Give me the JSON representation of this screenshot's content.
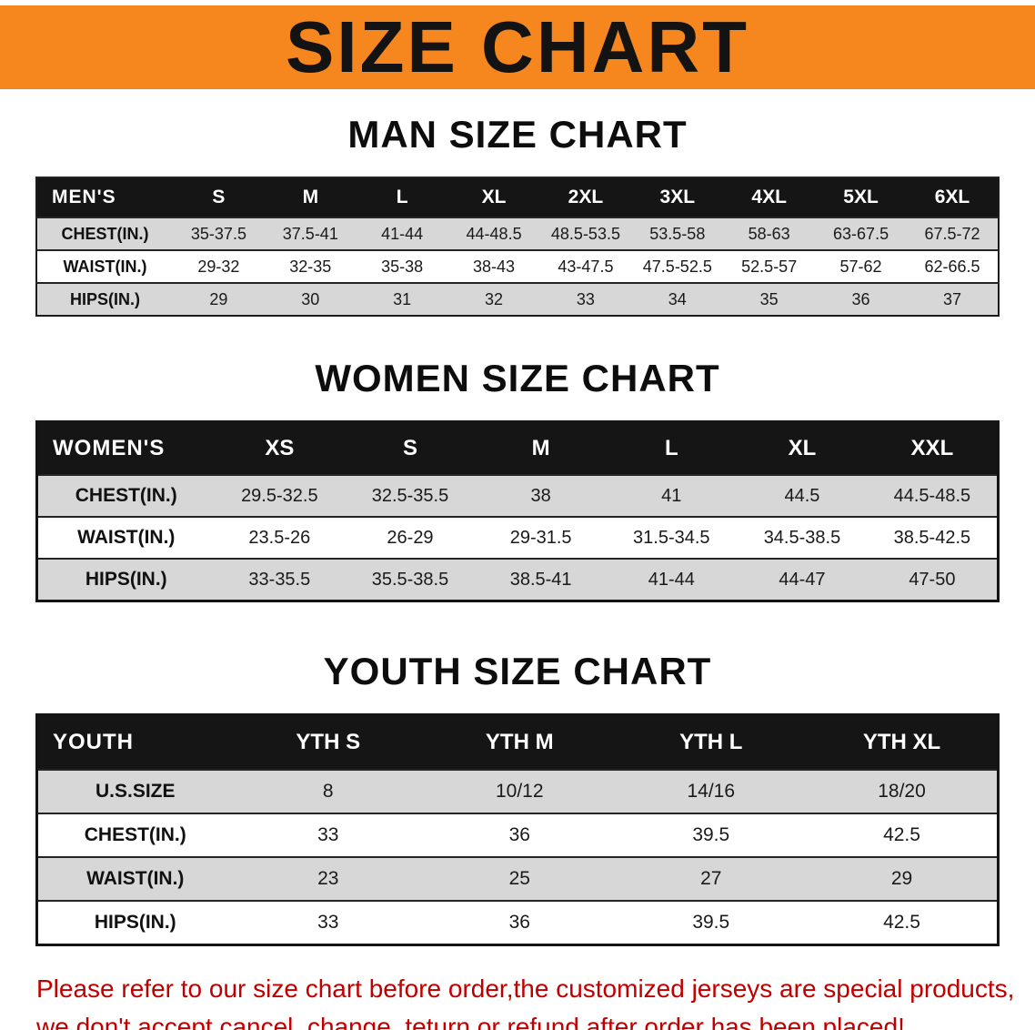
{
  "banner": {
    "title": "SIZE CHART",
    "background_color": "#F6871E",
    "text_color": "#131313"
  },
  "men": {
    "heading": "MAN SIZE CHART",
    "label": "MEN'S",
    "sizes": [
      "S",
      "M",
      "L",
      "XL",
      "2XL",
      "3XL",
      "4XL",
      "5XL",
      "6XL"
    ],
    "rows": [
      {
        "label": "CHEST(IN.)",
        "values": [
          "35-37.5",
          "37.5-41",
          "41-44",
          "44-48.5",
          "48.5-53.5",
          "53.5-58",
          "58-63",
          "63-67.5",
          "67.5-72"
        ]
      },
      {
        "label": "WAIST(IN.)",
        "values": [
          "29-32",
          "32-35",
          "35-38",
          "38-43",
          "43-47.5",
          "47.5-52.5",
          "52.5-57",
          "57-62",
          "62-66.5"
        ]
      },
      {
        "label": "HIPS(IN.)",
        "values": [
          "29",
          "30",
          "31",
          "32",
          "33",
          "34",
          "35",
          "36",
          "37"
        ]
      }
    ]
  },
  "women": {
    "heading": "WOMEN SIZE CHART",
    "label": "WOMEN'S",
    "sizes": [
      "XS",
      "S",
      "M",
      "L",
      "XL",
      "XXL"
    ],
    "rows": [
      {
        "label": "CHEST(IN.)",
        "values": [
          "29.5-32.5",
          "32.5-35.5",
          "38",
          "41",
          "44.5",
          "44.5-48.5"
        ]
      },
      {
        "label": "WAIST(IN.)",
        "values": [
          "23.5-26",
          "26-29",
          "29-31.5",
          "31.5-34.5",
          "34.5-38.5",
          "38.5-42.5"
        ]
      },
      {
        "label": "HIPS(IN.)",
        "values": [
          "33-35.5",
          "35.5-38.5",
          "38.5-41",
          "41-44",
          "44-47",
          "47-50"
        ]
      }
    ]
  },
  "youth": {
    "heading": "YOUTH SIZE CHART",
    "label": "YOUTH",
    "sizes": [
      "YTH S",
      "YTH M",
      "YTH L",
      "YTH XL"
    ],
    "rows": [
      {
        "label": "U.S.SIZE",
        "values": [
          "8",
          "10/12",
          "14/16",
          "18/20"
        ]
      },
      {
        "label": "CHEST(IN.)",
        "values": [
          "33",
          "36",
          "39.5",
          "42.5"
        ]
      },
      {
        "label": "WAIST(IN.)",
        "values": [
          "23",
          "25",
          "27",
          "29"
        ]
      },
      {
        "label": "HIPS(IN.)",
        "values": [
          "33",
          "36",
          "39.5",
          "42.5"
        ]
      }
    ]
  },
  "disclaimer": {
    "text_color": "#C00000",
    "line1": "Please refer to our size chart before order,the customized jerseys are special products,",
    "line2": "we don't accept cancel, change, teturn or refund after order has been placed!"
  }
}
